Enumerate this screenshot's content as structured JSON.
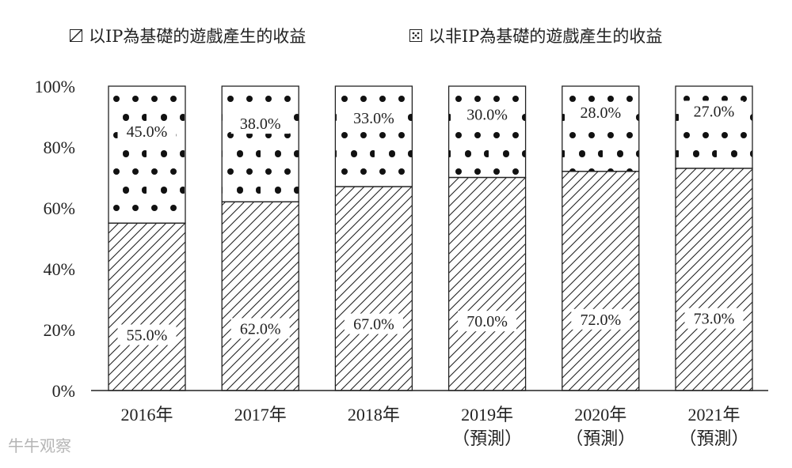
{
  "chart_data": {
    "type": "bar",
    "stacked": true,
    "categories": [
      "2016年",
      "2017年",
      "2018年",
      "2019年",
      "2020年",
      "2021年"
    ],
    "category_sublabels": [
      "",
      "",
      "",
      "（預測）",
      "（預測）",
      "（預測）"
    ],
    "series": [
      {
        "name": "以IP為基礎的遊戲產生的收益",
        "pattern": "hatch",
        "values": [
          55.0,
          62.0,
          67.0,
          70.0,
          72.0,
          73.0
        ],
        "labels": [
          "55.0%",
          "62.0%",
          "67.0%",
          "70.0%",
          "72.0%",
          "73.0%"
        ]
      },
      {
        "name": "以非IP為基礎的遊戲產生的收益",
        "pattern": "dots",
        "values": [
          45.0,
          38.0,
          33.0,
          30.0,
          28.0,
          27.0
        ],
        "labels": [
          "45.0%",
          "38.0%",
          "33.0%",
          "30.0%",
          "28.0%",
          "27.0%"
        ]
      }
    ],
    "yticks": [
      "0%",
      "20%",
      "40%",
      "60%",
      "80%",
      "100%"
    ],
    "ylim": [
      0,
      100
    ],
    "legend_position": "top",
    "grid": false,
    "xlabel": "",
    "ylabel": ""
  },
  "watermark": "牛牛观察"
}
